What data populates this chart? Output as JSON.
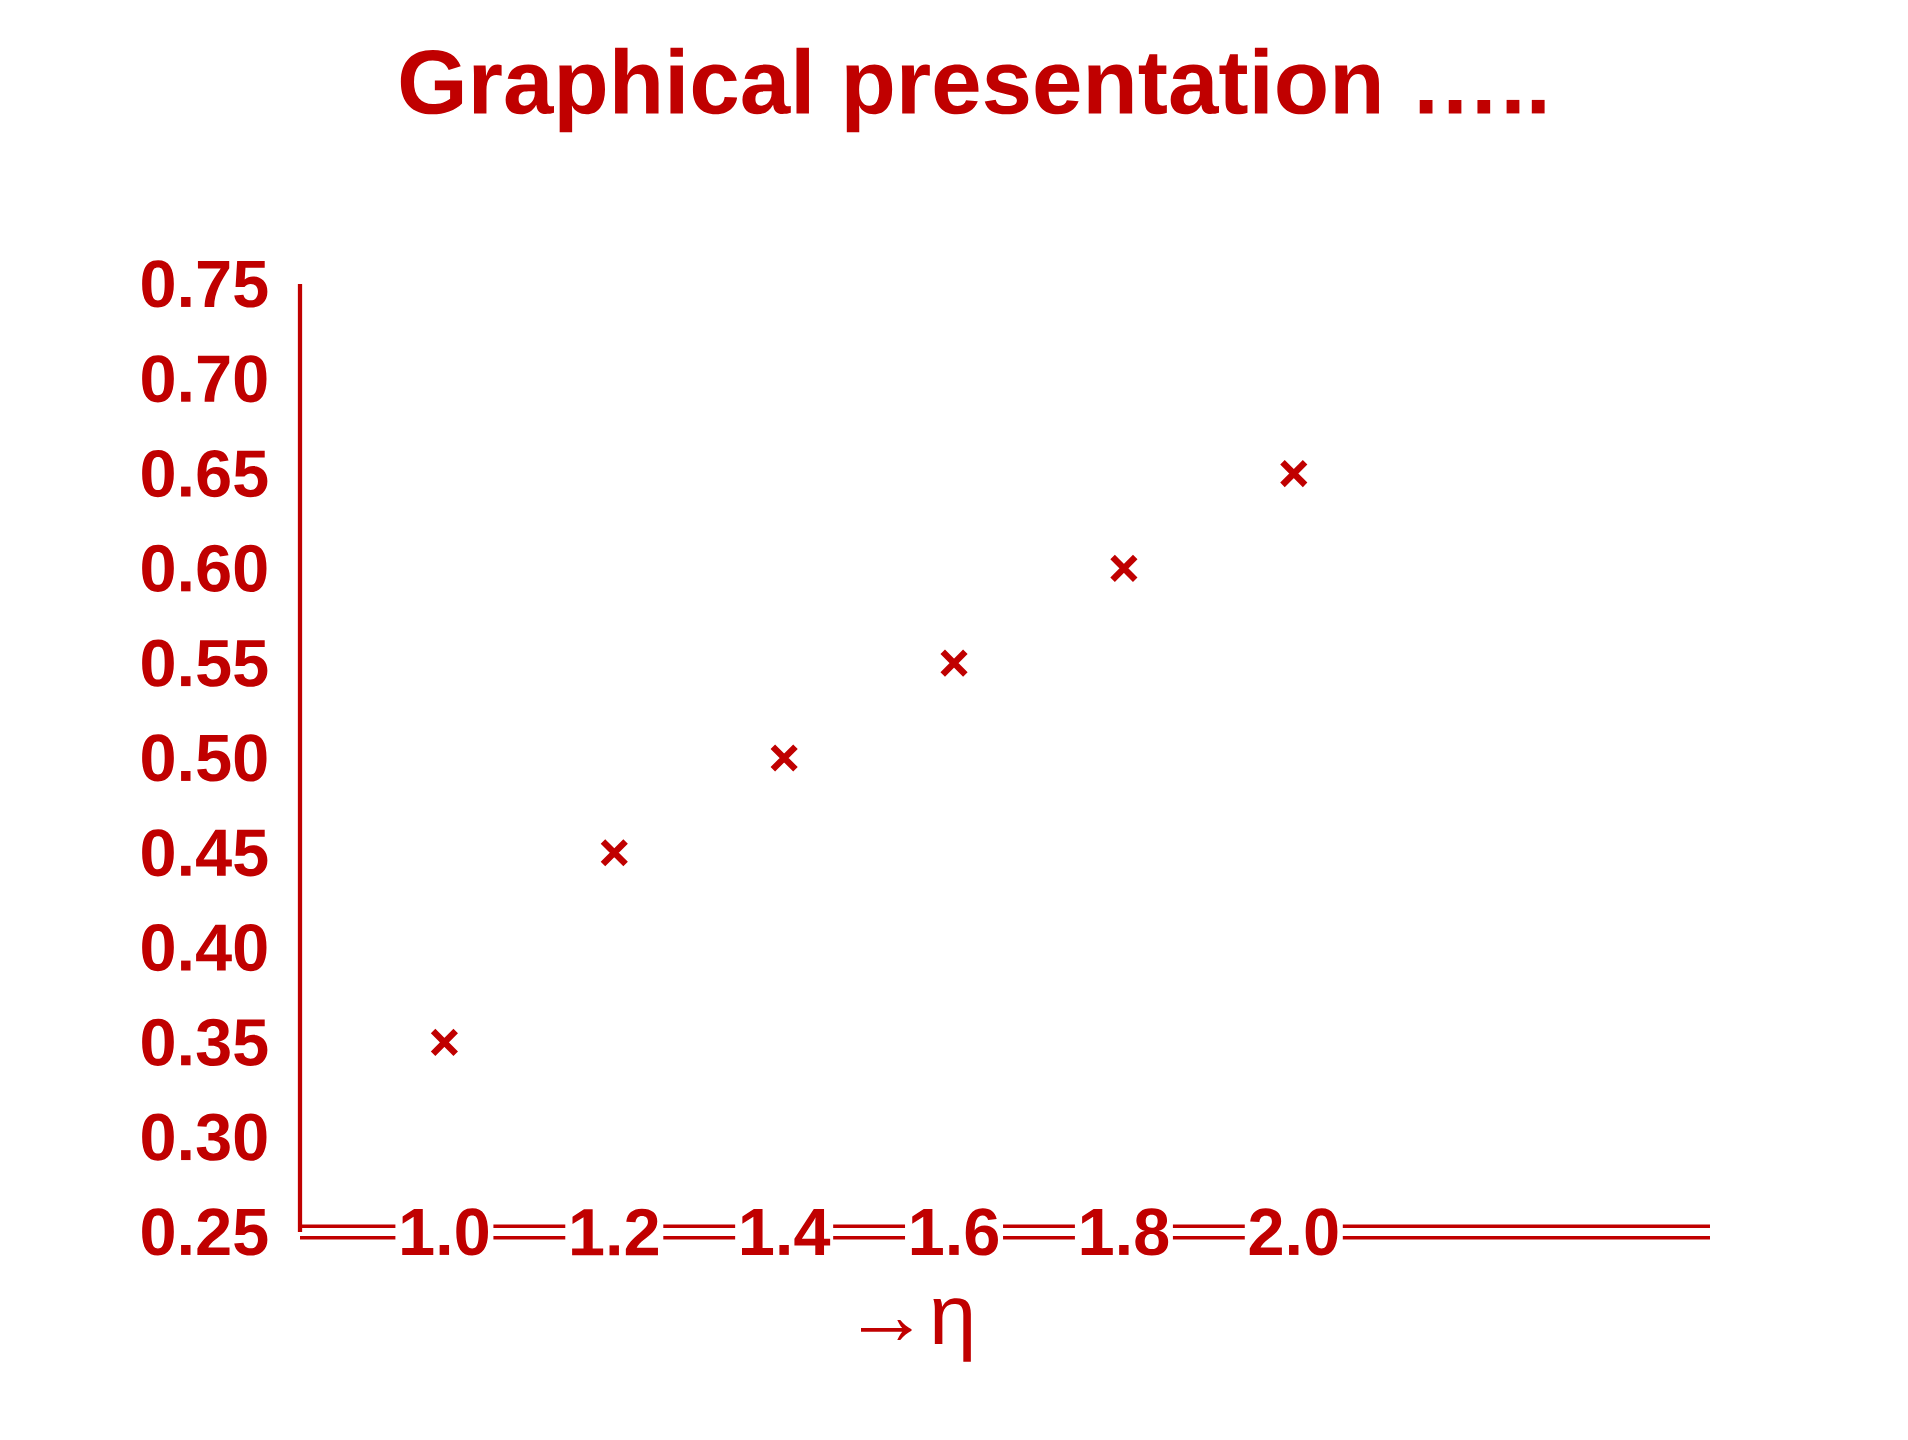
{
  "chart_data": {
    "type": "scatter",
    "title": "Graphical presentation …..",
    "xlabel": "→η",
    "x": [
      1.0,
      1.2,
      1.4,
      1.6,
      1.8,
      2.0
    ],
    "values": [
      0.35,
      0.45,
      0.5,
      0.55,
      0.6,
      0.65
    ],
    "color": "#c00000",
    "marker": "cross",
    "xlim": [
      0.83,
      2.49
    ],
    "ylim": [
      0.25,
      0.75
    ],
    "xticks": [
      {
        "value": 1.0,
        "label": "1.0"
      },
      {
        "value": 1.2,
        "label": "1.2"
      },
      {
        "value": 1.4,
        "label": "1.4"
      },
      {
        "value": 1.6,
        "label": "1.6"
      },
      {
        "value": 1.8,
        "label": "1.8"
      },
      {
        "value": 2.0,
        "label": "2.0"
      }
    ],
    "yticks": [
      0.25,
      {
        "value": 0.3,
        "label": "0.30"
      },
      0.35,
      {
        "value": 0.4,
        "label": "0.40"
      },
      0.45,
      {
        "value": 0.5,
        "label": "0.50"
      },
      0.55,
      {
        "value": 0.6,
        "label": "0.60"
      },
      0.65,
      {
        "value": 0.7,
        "label": "0.70"
      },
      0.75
    ]
  }
}
